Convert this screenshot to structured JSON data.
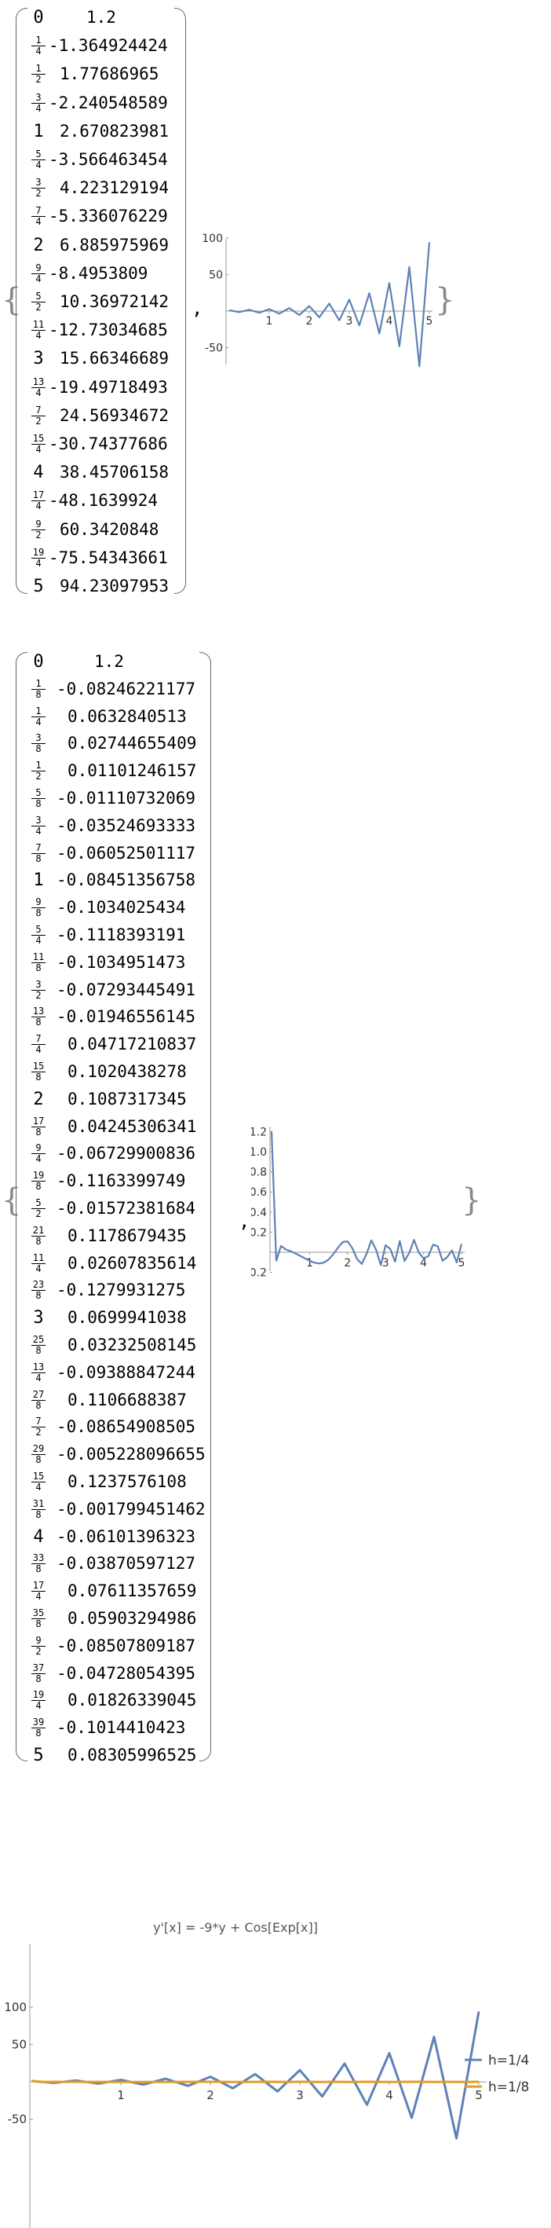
{
  "section1": {
    "rows": [
      {
        "x": "0",
        "y": "1.2"
      },
      {
        "x": "1/4",
        "y": "-1.364924424"
      },
      {
        "x": "1/2",
        "y": "1.77686965"
      },
      {
        "x": "3/4",
        "y": "-2.240548589"
      },
      {
        "x": "1",
        "y": "2.670823981"
      },
      {
        "x": "5/4",
        "y": "-3.566463454"
      },
      {
        "x": "3/2",
        "y": "4.223129194"
      },
      {
        "x": "7/4",
        "y": "-5.336076229"
      },
      {
        "x": "2",
        "y": "6.885975969"
      },
      {
        "x": "9/4",
        "y": "-8.4953809"
      },
      {
        "x": "5/2",
        "y": "10.36972142"
      },
      {
        "x": "11/4",
        "y": "-12.73034685"
      },
      {
        "x": "3",
        "y": "15.66346689"
      },
      {
        "x": "13/4",
        "y": "-19.49718493"
      },
      {
        "x": "7/2",
        "y": "24.56934672"
      },
      {
        "x": "15/4",
        "y": "-30.74377686"
      },
      {
        "x": "4",
        "y": "38.45706158"
      },
      {
        "x": "17/4",
        "y": "-48.1639924"
      },
      {
        "x": "9/2",
        "y": "60.3420848"
      },
      {
        "x": "19/4",
        "y": "-75.54343661"
      },
      {
        "x": "5",
        "y": "94.23097953"
      }
    ],
    "separator": ",",
    "open_brace": "{",
    "close_brace": "}",
    "plot": {
      "x_ticks": [
        "1",
        "2",
        "3",
        "4",
        "5"
      ],
      "y_ticks": [
        "100",
        "50",
        "-50"
      ],
      "color": "#5E81B5"
    }
  },
  "section2": {
    "rows": [
      {
        "x": "0",
        "y": "1.2"
      },
      {
        "x": "1/8",
        "y": "-0.08246221177"
      },
      {
        "x": "1/4",
        "y": "0.0632840513"
      },
      {
        "x": "3/8",
        "y": "0.02744655409"
      },
      {
        "x": "1/2",
        "y": "0.01101246157"
      },
      {
        "x": "5/8",
        "y": "-0.01110732069"
      },
      {
        "x": "3/4",
        "y": "-0.03524693333"
      },
      {
        "x": "7/8",
        "y": "-0.06052501117"
      },
      {
        "x": "1",
        "y": "-0.08451356758"
      },
      {
        "x": "9/8",
        "y": "-0.1034025434"
      },
      {
        "x": "5/4",
        "y": "-0.1118393191"
      },
      {
        "x": "11/8",
        "y": "-0.1034951473"
      },
      {
        "x": "3/2",
        "y": "-0.07293445491"
      },
      {
        "x": "13/8",
        "y": "-0.01946556145"
      },
      {
        "x": "7/4",
        "y": "0.04717210837"
      },
      {
        "x": "15/8",
        "y": "0.1020438278"
      },
      {
        "x": "2",
        "y": "0.1087317345"
      },
      {
        "x": "17/8",
        "y": "0.04245306341"
      },
      {
        "x": "9/4",
        "y": "-0.06729900836"
      },
      {
        "x": "19/8",
        "y": "-0.1163399749"
      },
      {
        "x": "5/2",
        "y": "-0.01572381684"
      },
      {
        "x": "21/8",
        "y": "0.1178679435"
      },
      {
        "x": "11/4",
        "y": "0.02607835614"
      },
      {
        "x": "23/8",
        "y": "-0.1279931275"
      },
      {
        "x": "3",
        "y": "0.0699941038"
      },
      {
        "x": "25/8",
        "y": "0.03232508145"
      },
      {
        "x": "13/4",
        "y": "-0.09388847244"
      },
      {
        "x": "27/8",
        "y": "0.1106688387"
      },
      {
        "x": "7/2",
        "y": "-0.08654908505"
      },
      {
        "x": "29/8",
        "y": "-0.005228096655"
      },
      {
        "x": "15/4",
        "y": "0.1237576108"
      },
      {
        "x": "31/8",
        "y": "-0.001799451462"
      },
      {
        "x": "4",
        "y": "-0.06101396323"
      },
      {
        "x": "33/8",
        "y": "-0.03870597127"
      },
      {
        "x": "17/4",
        "y": "0.07611357659"
      },
      {
        "x": "35/8",
        "y": "0.05903294986"
      },
      {
        "x": "9/2",
        "y": "-0.08507809187"
      },
      {
        "x": "37/8",
        "y": "-0.04728054395"
      },
      {
        "x": "19/4",
        "y": "0.01826339045"
      },
      {
        "x": "39/8",
        "y": "-0.1014410423"
      },
      {
        "x": "5",
        "y": "0.08305996525"
      }
    ],
    "separator": ",",
    "open_brace": "{",
    "close_brace": "}",
    "plot": {
      "x_ticks": [
        "1",
        "2",
        "3",
        "4",
        "5"
      ],
      "y_ticks": [
        "1.2",
        "1.0",
        "0.8",
        "0.6",
        "0.4",
        "0.2",
        "-0.2"
      ],
      "color": "#5E81B5"
    }
  },
  "chart_data": {
    "type": "line",
    "title": "y'[x] = -9*y + Cos[Exp[x]]",
    "xlim": [
      0,
      5
    ],
    "ylim": [
      -75,
      100
    ],
    "x_ticks": [
      "1",
      "2",
      "3",
      "4",
      "5"
    ],
    "y_ticks": [
      "100",
      "50",
      "-50"
    ],
    "legend_placement": "right",
    "series": [
      {
        "name": "h=1/4",
        "color": "#5E81B5",
        "x": [
          0,
          0.25,
          0.5,
          0.75,
          1,
          1.25,
          1.5,
          1.75,
          2,
          2.25,
          2.5,
          2.75,
          3,
          3.25,
          3.5,
          3.75,
          4,
          4.25,
          4.5,
          4.75,
          5
        ],
        "y": [
          1.2,
          -1.364924424,
          1.77686965,
          -2.240548589,
          2.670823981,
          -3.566463454,
          4.223129194,
          -5.336076229,
          6.885975969,
          -8.4953809,
          10.36972142,
          -12.73034685,
          15.66346689,
          -19.49718493,
          24.56934672,
          -30.74377686,
          38.45706158,
          -48.1639924,
          60.3420848,
          -75.54343661,
          94.23097953
        ]
      },
      {
        "name": "h=1/8",
        "color": "#E19C24",
        "x": [
          0,
          0.125,
          0.25,
          0.375,
          0.5,
          0.625,
          0.75,
          0.875,
          1,
          1.125,
          1.25,
          1.375,
          1.5,
          1.625,
          1.75,
          1.875,
          2,
          2.125,
          2.25,
          2.375,
          2.5,
          2.625,
          2.75,
          2.875,
          3,
          3.125,
          3.25,
          3.375,
          3.5,
          3.625,
          3.75,
          3.875,
          4,
          4.125,
          4.25,
          4.375,
          4.5,
          4.625,
          4.75,
          4.875,
          5
        ],
        "y": [
          1.2,
          -0.08246221177,
          0.0632840513,
          0.02744655409,
          0.01101246157,
          -0.01110732069,
          -0.03524693333,
          -0.06052501117,
          -0.08451356758,
          -0.1034025434,
          -0.1118393191,
          -0.1034951473,
          -0.07293445491,
          -0.01946556145,
          0.04717210837,
          0.1020438278,
          0.1087317345,
          0.04245306341,
          -0.06729900836,
          -0.1163399749,
          -0.01572381684,
          0.1178679435,
          0.02607835614,
          -0.1279931275,
          0.0699941038,
          0.03232508145,
          -0.09388847244,
          0.1106688387,
          -0.08654908505,
          -0.005228096655,
          0.1237576108,
          -0.001799451462,
          -0.06101396323,
          -0.03870597127,
          0.07611357659,
          0.05903294986,
          -0.08507809187,
          -0.04728054395,
          0.01826339045,
          -0.1014410423,
          0.08305996525
        ]
      }
    ]
  }
}
